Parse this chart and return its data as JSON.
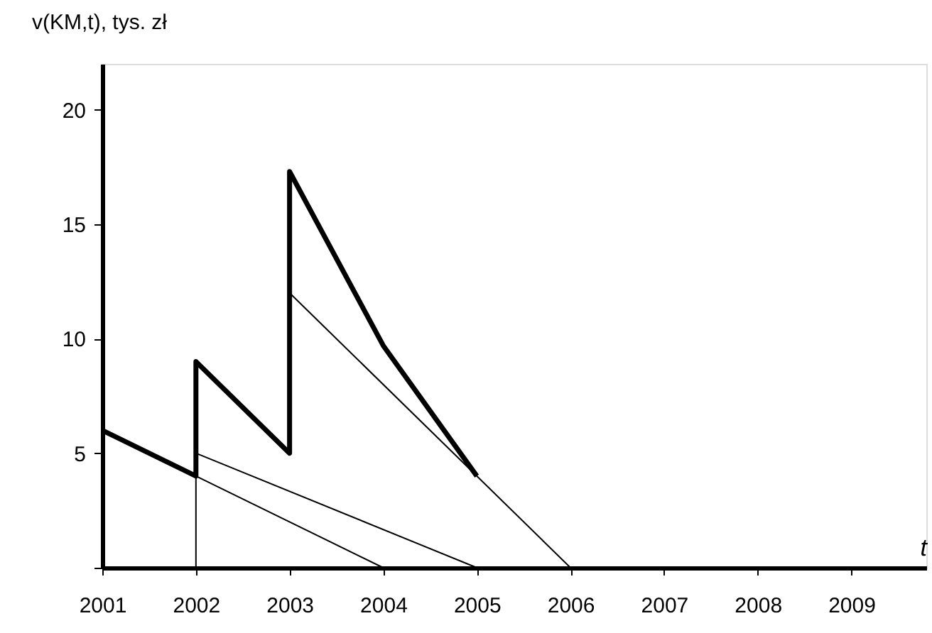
{
  "chart_data": {
    "type": "line",
    "xlabel": "t",
    "ylabel": "v(KM,t), tys. zł",
    "xlim": [
      2001,
      2009.8
    ],
    "ylim": [
      0,
      22
    ],
    "xticks": [
      2001,
      2002,
      2003,
      2004,
      2005,
      2006,
      2007,
      2008,
      2009
    ],
    "yticks": [
      {
        "value": 0,
        "label": null
      },
      5,
      10,
      15,
      20
    ],
    "grid": false,
    "marker": "none",
    "line_style": "solid",
    "series": [
      {
        "color": "#000000",
        "x": [
          2001,
          2002,
          2002,
          2003,
          2003,
          2004,
          2005
        ],
        "values": [
          6,
          4,
          9,
          5,
          17.3,
          9.7,
          4
        ]
      },
      {
        "color": "#000000",
        "x": [
          2002,
          2002,
          2004
        ],
        "values": [
          0,
          4,
          0
        ]
      },
      {
        "color": "#000000",
        "x": [
          2002,
          2005
        ],
        "values": [
          5,
          0
        ]
      },
      {
        "color": "#000000",
        "x": [
          2003,
          2006
        ],
        "values": [
          12,
          0
        ]
      }
    ]
  }
}
